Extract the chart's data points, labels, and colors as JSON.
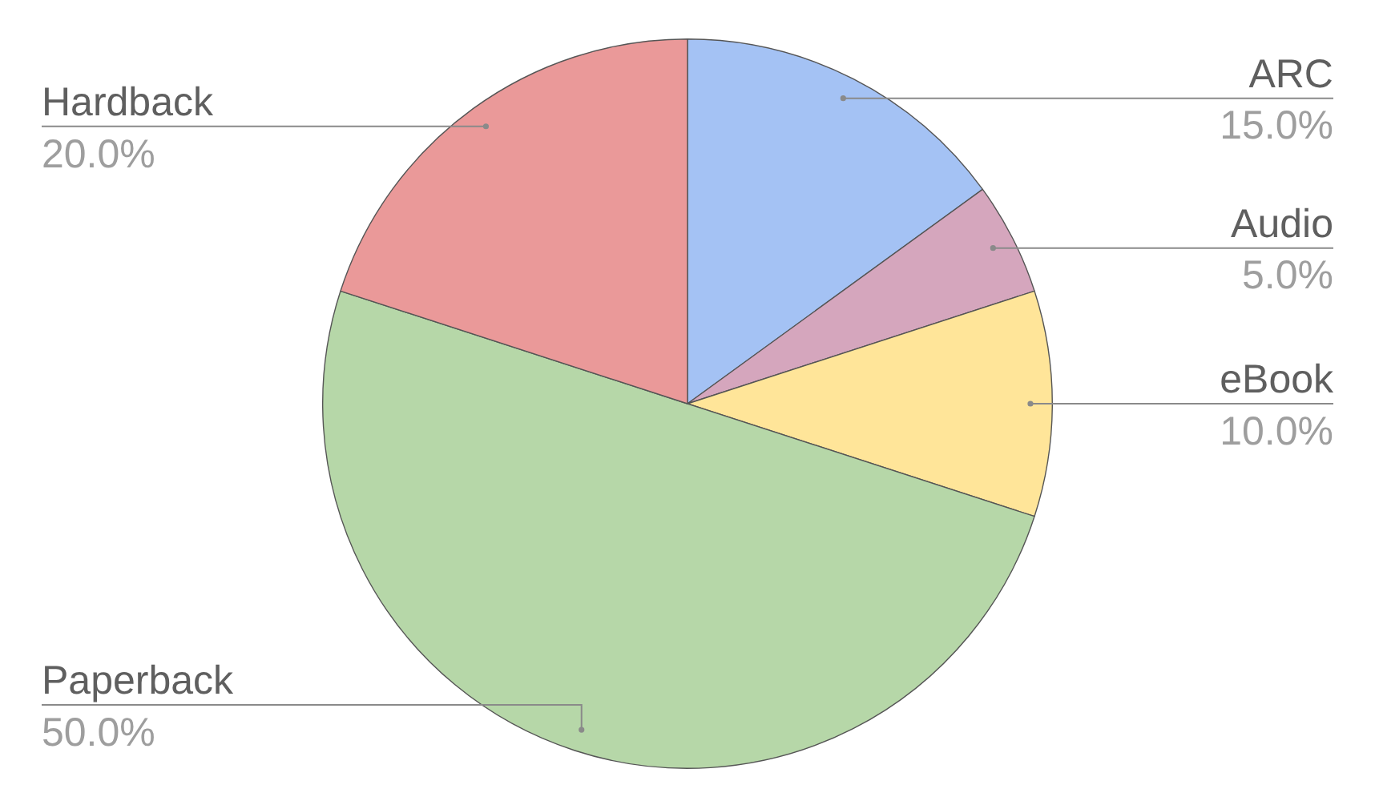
{
  "chart_data": {
    "type": "pie",
    "categories": [
      "ARC",
      "Audio",
      "eBook",
      "Paperback",
      "Hardback"
    ],
    "values": [
      15,
      5,
      10,
      50,
      20
    ],
    "value_labels": [
      "15.0%",
      "5.0%",
      "10.0%",
      "50.0%",
      "20.0%"
    ],
    "colors": [
      "#a4c2f4",
      "#d5a6bd",
      "#ffe599",
      "#b6d7a8",
      "#ea9999"
    ],
    "legend": false
  }
}
